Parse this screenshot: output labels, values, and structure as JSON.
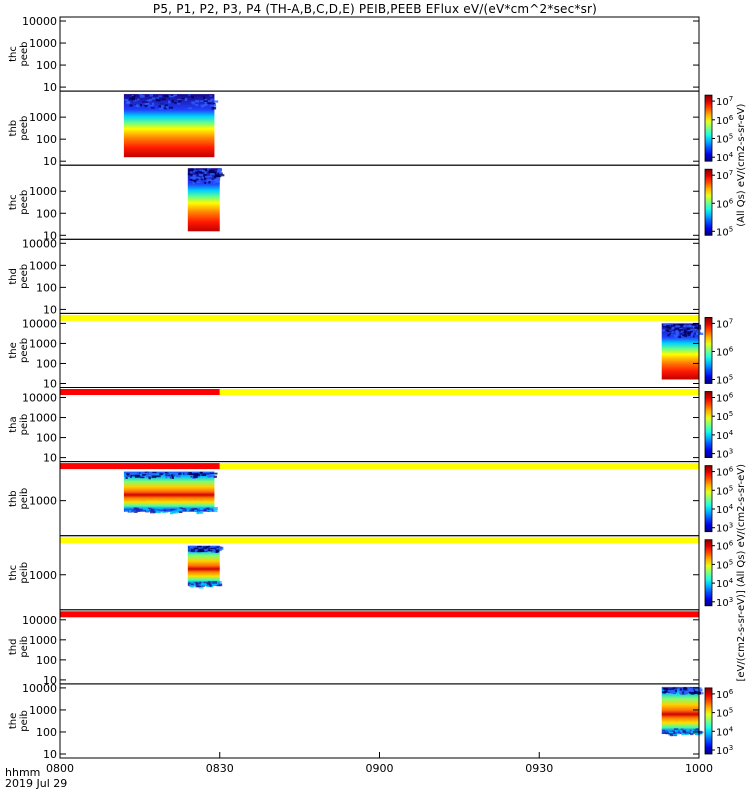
{
  "title": "P5, P1, P2, P3, P4 (TH-A,B,C,D,E) PEIB,PEEB EFlux eV/(eV*cm^2*sec*sr)",
  "xlabel_line1": "hhmm",
  "xlabel_line2": "2019 Jul 29",
  "right_axis_label_1": "(All Qs) eV/(cm2-s-sr-eV)",
  "right_axis_label_2": "[eV/(cm2-s-sr-eV)] (All Qs) eV/(cm2-s-sr-eV)",
  "chart_data": {
    "type": "heatmap",
    "x_ticks": [
      "0800",
      "0830",
      "0900",
      "0930",
      "1000"
    ],
    "x_range": [
      "08:00",
      "10:00"
    ],
    "y_scale": "log",
    "panels": [
      {
        "ylabel": [
          "thc",
          "peeb"
        ],
        "y_ticks": [
          "10",
          "100",
          "1000",
          "10000"
        ],
        "blocks": [],
        "colorbar": [],
        "status_bar": null
      },
      {
        "ylabel": [
          "thb",
          "peeb"
        ],
        "y_ticks": [
          "10",
          "100",
          "1000"
        ],
        "blocks": [
          {
            "start": "08:12",
            "end": "08:29",
            "kind": "peeb"
          }
        ],
        "colorbar": [
          "10^4",
          "10^5",
          "10^6",
          "10^7"
        ],
        "status_bar": null
      },
      {
        "ylabel": [
          "thc",
          "peeb"
        ],
        "y_ticks": [
          "10",
          "100",
          "1000"
        ],
        "blocks": [
          {
            "start": "08:24",
            "end": "08:30",
            "kind": "peeb"
          }
        ],
        "colorbar": [
          "10^5",
          "10^6",
          "10^7"
        ],
        "status_bar": null
      },
      {
        "ylabel": [
          "thd",
          "peeb"
        ],
        "y_ticks": [
          "10",
          "100",
          "1000",
          "10000"
        ],
        "blocks": [],
        "colorbar": [],
        "status_bar": null
      },
      {
        "ylabel": [
          "the",
          "peeb"
        ],
        "y_ticks": [
          "10",
          "100",
          "1000",
          "10000"
        ],
        "blocks": [
          {
            "start": "09:53",
            "end": "10:00",
            "kind": "peeb"
          }
        ],
        "colorbar": [
          "10^5",
          "10^6",
          "10^7"
        ],
        "status_bar": "yellow"
      },
      {
        "ylabel": [
          "tha",
          "peib"
        ],
        "y_ticks": [
          "10",
          "100",
          "1000",
          "10000"
        ],
        "blocks": [],
        "colorbar": [
          "10^3",
          "10^4",
          "10^5",
          "10^6"
        ],
        "status_bar": "red-yellow"
      },
      {
        "ylabel": [
          "thb",
          "peib"
        ],
        "y_ticks": [
          "1000"
        ],
        "blocks": [
          {
            "start": "08:12",
            "end": "08:29",
            "kind": "peib"
          }
        ],
        "colorbar": [
          "10^3",
          "10^4",
          "10^5",
          "10^6"
        ],
        "status_bar": "red-yellow"
      },
      {
        "ylabel": [
          "thc",
          "peib"
        ],
        "y_ticks": [
          "1000"
        ],
        "blocks": [
          {
            "start": "08:24",
            "end": "08:30",
            "kind": "peib"
          }
        ],
        "colorbar": [
          "10^3",
          "10^4",
          "10^5",
          "10^6"
        ],
        "status_bar": "yellow"
      },
      {
        "ylabel": [
          "thd",
          "peib"
        ],
        "y_ticks": [
          "10",
          "100",
          "1000",
          "10000"
        ],
        "blocks": [],
        "colorbar": [],
        "status_bar": "red"
      },
      {
        "ylabel": [
          "the",
          "peib"
        ],
        "y_ticks": [
          "10",
          "100",
          "1000",
          "10000"
        ],
        "blocks": [
          {
            "start": "09:53",
            "end": "10:00",
            "kind": "peib"
          }
        ],
        "colorbar": [
          "10^3",
          "10^4",
          "10^5",
          "10^6"
        ],
        "status_bar": null
      }
    ]
  }
}
